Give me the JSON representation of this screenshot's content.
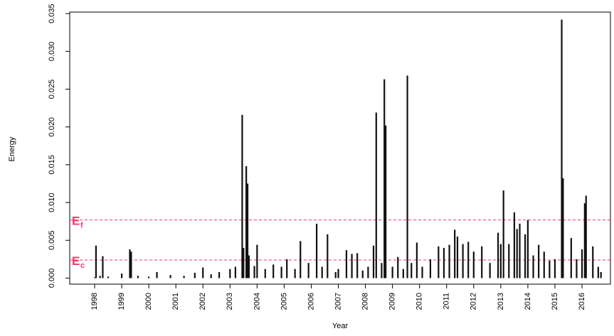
{
  "chart_data": {
    "type": "spike",
    "y_label": "Energy",
    "x_label": "Year",
    "color": "#111111",
    "xlim": [
      1997.08,
      2017.05
    ],
    "xticks": [
      1998,
      1999,
      2000,
      2001,
      2002,
      2003,
      2004,
      2005,
      2006,
      2007,
      2008,
      2009,
      2010,
      2011,
      2012,
      2013,
      2014,
      2015,
      2016
    ],
    "ylim": [
      -0.0008,
      0.0352
    ],
    "yticks": [
      {
        "value": 0,
        "label": "0.000"
      },
      {
        "value": 0.005,
        "label": "0.005"
      },
      {
        "value": 0.01,
        "label": "0.010"
      },
      {
        "value": 0.015,
        "label": "0.015"
      },
      {
        "value": 0.02,
        "label": "0.020"
      },
      {
        "value": 0.025,
        "label": "0.025"
      },
      {
        "value": 0.03,
        "label": "0.030"
      },
      {
        "value": 0.035,
        "label": "0.035"
      }
    ],
    "thresholds": [
      {
        "name": "E",
        "subscript": "f",
        "value": 0.0077,
        "color": "#ff3366"
      },
      {
        "name": "E",
        "subscript": "c",
        "value": 0.0024,
        "color": "#ff3366"
      }
    ],
    "x": [
      1998.0,
      1998.05,
      1998.2,
      1998.3,
      1998.5,
      1999.0,
      1999.3,
      1999.35,
      1999.6,
      2000.0,
      2000.3,
      2000.8,
      2001.3,
      2001.7,
      2002.0,
      2002.3,
      2002.6,
      2003.0,
      2003.2,
      2003.45,
      2003.5,
      2003.6,
      2003.65,
      2003.7,
      2003.9,
      2004.0,
      2004.3,
      2004.6,
      2004.9,
      2005.1,
      2005.4,
      2005.6,
      2005.9,
      2006.2,
      2006.4,
      2006.6,
      2006.9,
      2007.0,
      2007.3,
      2007.5,
      2007.7,
      2007.9,
      2008.1,
      2008.3,
      2008.4,
      2008.6,
      2008.7,
      2008.75,
      2009.0,
      2009.2,
      2009.4,
      2009.55,
      2009.7,
      2009.9,
      2010.1,
      2010.4,
      2010.7,
      2010.9,
      2011.1,
      2011.3,
      2011.4,
      2011.6,
      2011.8,
      2012.0,
      2012.3,
      2012.6,
      2012.9,
      2013.0,
      2013.1,
      2013.3,
      2013.5,
      2013.6,
      2013.7,
      2013.9,
      2014.0,
      2014.2,
      2014.4,
      2014.6,
      2014.8,
      2015.0,
      2015.25,
      2015.3,
      2015.6,
      2015.8,
      2016.0,
      2016.1,
      2016.15,
      2016.4,
      2016.6,
      2016.7
    ],
    "values": [
      0.0001,
      0.0043,
      0.0003,
      0.0029,
      0.0002,
      0.0006,
      0.0038,
      0.0035,
      0.0003,
      0.0002,
      0.0008,
      0.0004,
      0.0003,
      0.0007,
      0.0014,
      0.0005,
      0.0008,
      0.0012,
      0.0015,
      0.0216,
      0.004,
      0.0148,
      0.0125,
      0.003,
      0.0016,
      0.0044,
      0.0012,
      0.0018,
      0.0015,
      0.0025,
      0.0012,
      0.0049,
      0.002,
      0.0072,
      0.0015,
      0.0058,
      0.0008,
      0.0012,
      0.0037,
      0.0032,
      0.0033,
      0.001,
      0.0015,
      0.0043,
      0.0219,
      0.002,
      0.0263,
      0.0202,
      0.0015,
      0.0028,
      0.0012,
      0.0268,
      0.002,
      0.0047,
      0.0015,
      0.0025,
      0.0042,
      0.004,
      0.0044,
      0.0064,
      0.0055,
      0.0045,
      0.0048,
      0.0035,
      0.0042,
      0.002,
      0.006,
      0.0045,
      0.0116,
      0.0045,
      0.0087,
      0.0065,
      0.0072,
      0.0058,
      0.0077,
      0.003,
      0.0044,
      0.0035,
      0.0023,
      0.0025,
      0.0342,
      0.0132,
      0.0053,
      0.0025,
      0.0038,
      0.0099,
      0.0109,
      0.0042,
      0.0015,
      0.0008
    ]
  }
}
